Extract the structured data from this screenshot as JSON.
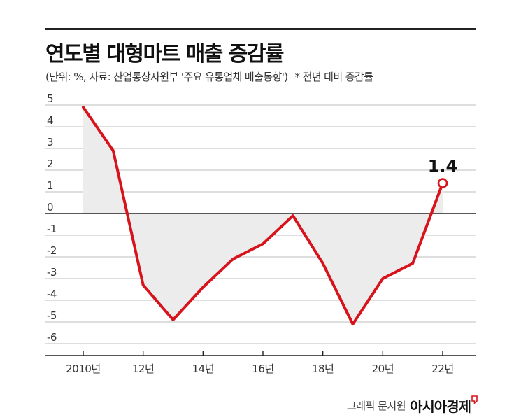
{
  "header": {
    "title": "연도별 대형마트 매출 증감률",
    "source": "(단위: %, 자료: 산업통상자원부 '주요 유통업체 매출동향')",
    "note": "* 전년 대비 증감률"
  },
  "credit": {
    "byline": "그래픽 문지원",
    "brand": "아시아경제"
  },
  "colors": {
    "line": "#d7141c",
    "fill": "#ececec",
    "zero_line": "#222222",
    "grid": "#bdbdbd"
  },
  "chart_data": {
    "type": "line",
    "x": [
      2010,
      2011,
      2012,
      2013,
      2014,
      2015,
      2016,
      2017,
      2018,
      2019,
      2020,
      2021,
      2022
    ],
    "series": [
      {
        "values": [
          4.9,
          2.9,
          -3.3,
          -4.9,
          -3.4,
          -2.1,
          -1.4,
          -0.1,
          -2.3,
          -5.1,
          -3.0,
          -2.3,
          1.4
        ]
      }
    ],
    "xticks": [
      2010,
      2012,
      2014,
      2016,
      2018,
      2020,
      2022
    ],
    "xtick_labels": [
      "2010년",
      "12년",
      "14년",
      "16년",
      "18년",
      "20년",
      "22년"
    ],
    "ylim": [
      -6,
      5
    ],
    "yticks": [
      5,
      4,
      3,
      2,
      1,
      0,
      -1,
      -2,
      -3,
      -4,
      -5,
      -6
    ],
    "ytick_labels": [
      "5",
      "4",
      "3",
      "2",
      "1",
      "0",
      "-1",
      "-2",
      "-3",
      "-4",
      "-5",
      "-6"
    ],
    "annotation": {
      "x": 2022,
      "text": "1.4"
    },
    "grid": true,
    "legend": "none"
  }
}
